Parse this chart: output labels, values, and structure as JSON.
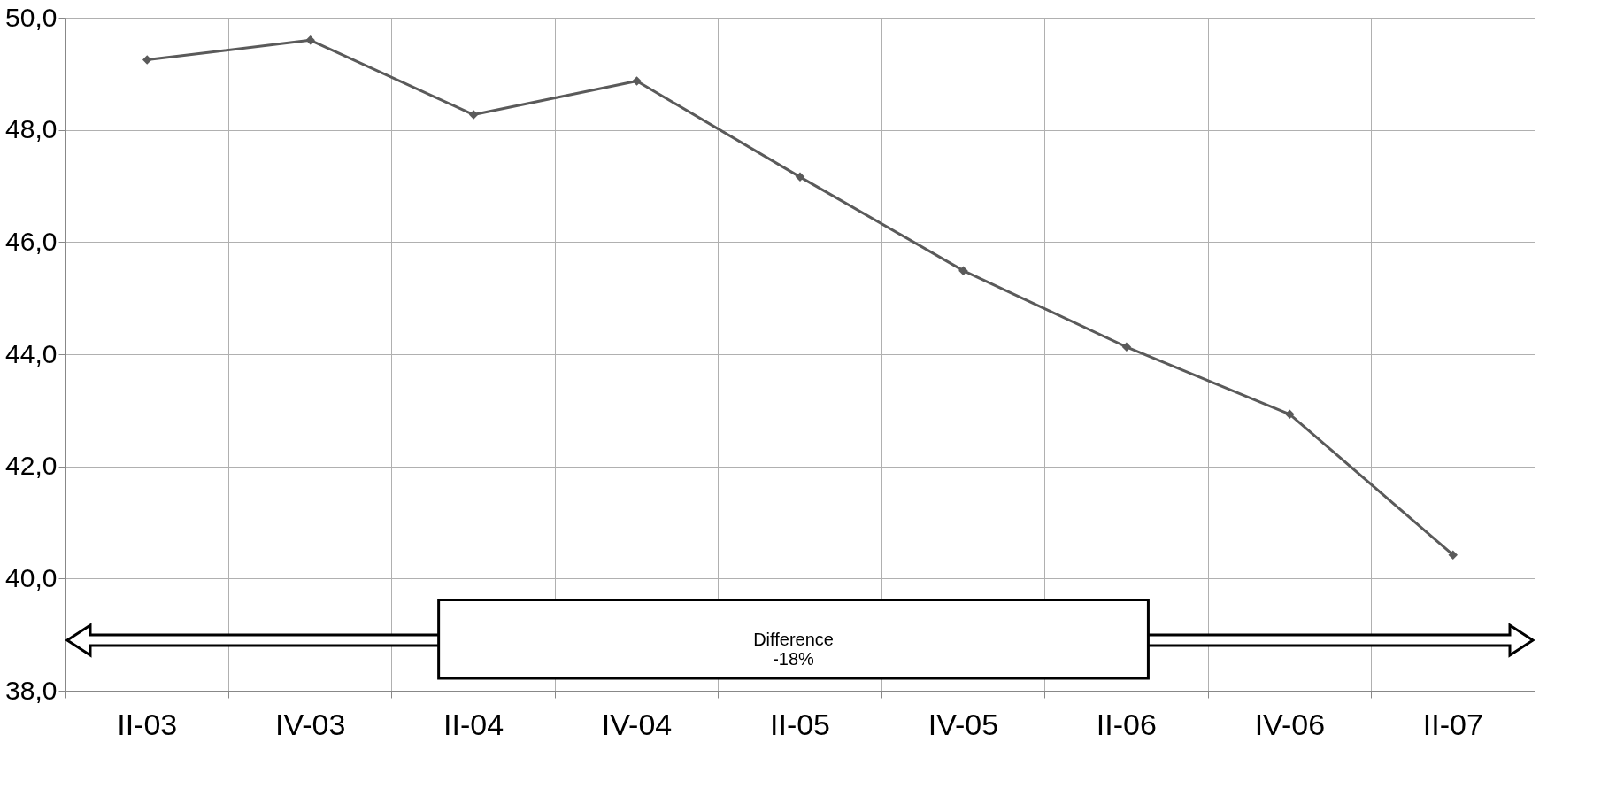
{
  "chart_data": {
    "type": "line",
    "categories": [
      "II-03",
      "IV-03",
      "II-04",
      "IV-04",
      "II-05",
      "IV-05",
      "II-06",
      "IV-06",
      "II-07"
    ],
    "series": [
      {
        "color": "#5a5a5a",
        "values": [
          49.25,
          49.6,
          48.27,
          48.87,
          47.16,
          45.49,
          44.13,
          42.93,
          40.42
        ]
      }
    ],
    "ylim": [
      38,
      50
    ],
    "yticks": [
      {
        "value": 38,
        "label": "38,0"
      },
      {
        "value": 40,
        "label": "40,0"
      },
      {
        "value": 42,
        "label": "42,0"
      },
      {
        "value": 44,
        "label": "44,0"
      },
      {
        "value": 46,
        "label": "46,0"
      },
      {
        "value": 48,
        "label": "48,0"
      },
      {
        "value": 50,
        "label": "50,0"
      }
    ],
    "annotations": [
      "Difference\n-18%"
    ],
    "grid": true,
    "marker": "diamond",
    "line_style": "solid"
  }
}
